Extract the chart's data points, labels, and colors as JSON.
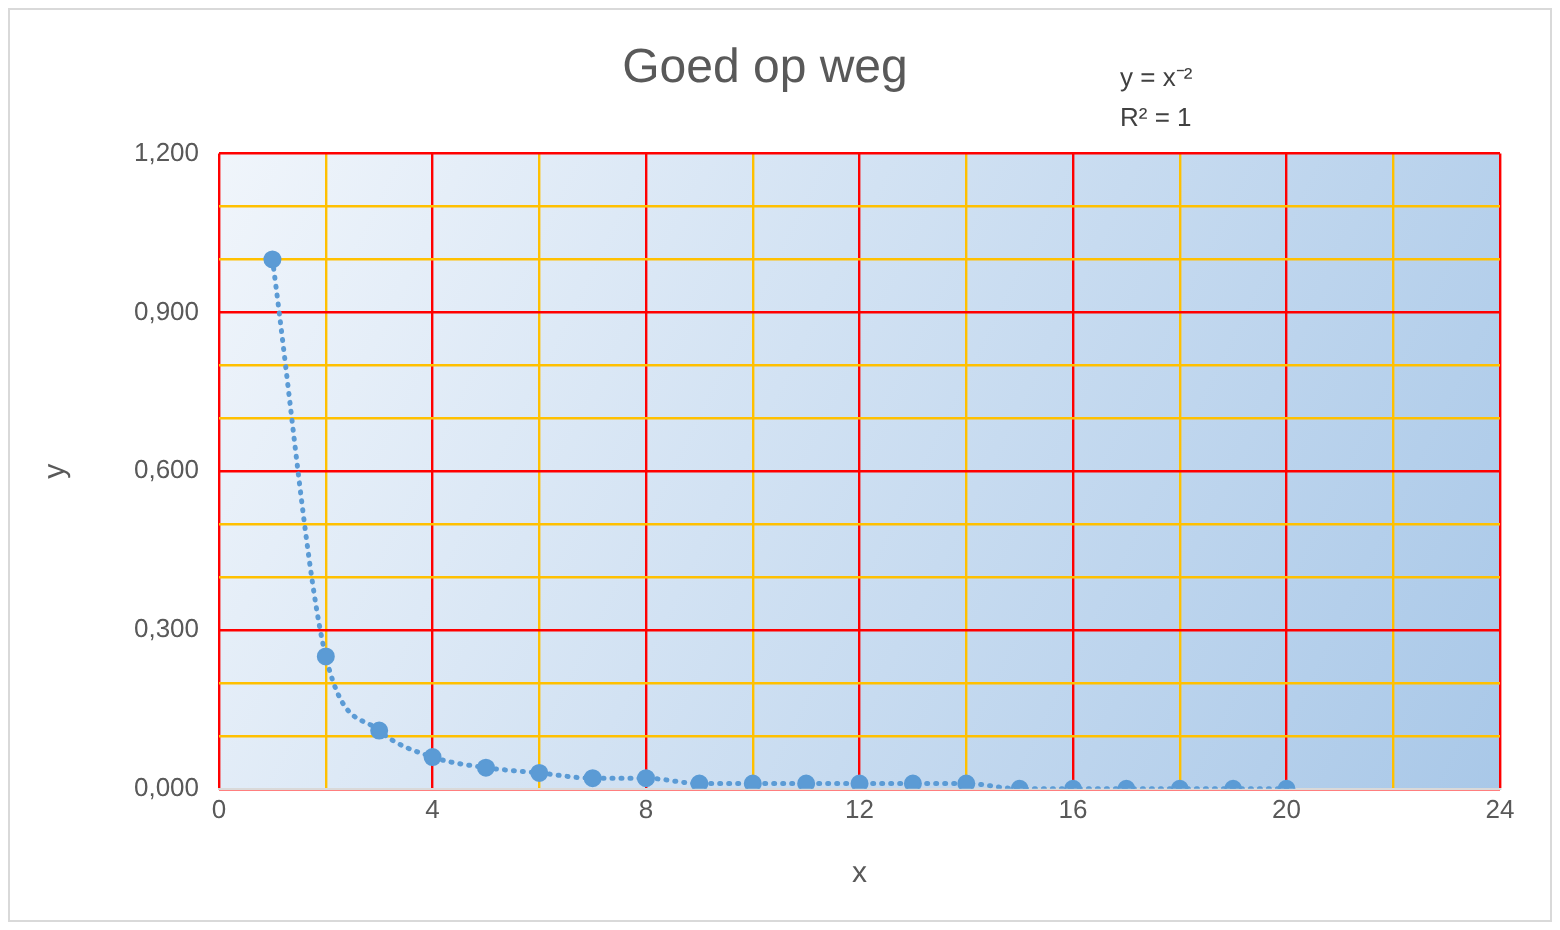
{
  "chart_data": {
    "type": "scatter",
    "title": "Goed op weg",
    "xlabel": "x",
    "ylabel": "y",
    "annotations": [
      "y = x⁻²",
      "R² = 1"
    ],
    "xlim": [
      0,
      24
    ],
    "xticks": [
      0,
      {
        "value": 2,
        "label": null
      },
      4,
      {
        "value": 6,
        "label": null
      },
      8,
      {
        "value": 10,
        "label": null
      },
      12,
      {
        "value": 14,
        "label": null
      },
      16,
      {
        "value": 18,
        "label": null
      },
      20,
      {
        "value": 22,
        "label": null
      },
      24
    ],
    "ylim": [
      0,
      1.2
    ],
    "yticks": [
      {
        "value": 0,
        "label": "0,000"
      },
      {
        "value": 0.1,
        "label": null
      },
      {
        "value": 0.2,
        "label": null
      },
      {
        "value": 0.3,
        "label": "0,300"
      },
      {
        "value": 0.4,
        "label": null
      },
      {
        "value": 0.5,
        "label": null
      },
      {
        "value": 0.6,
        "label": "0,600"
      },
      {
        "value": 0.7,
        "label": null
      },
      {
        "value": 0.8,
        "label": null
      },
      {
        "value": 0.9,
        "label": "0,900"
      },
      {
        "value": 1.0,
        "label": null
      },
      {
        "value": 1.1,
        "label": null
      },
      {
        "value": 1.2,
        "label": "1,200"
      }
    ],
    "grid": true,
    "legend": false,
    "x": [
      1,
      2,
      3,
      4,
      5,
      6,
      7,
      8,
      9,
      10,
      11,
      12,
      13,
      14,
      15,
      16,
      17,
      18,
      19,
      20
    ],
    "series": [
      {
        "type": "line",
        "color": "#5b9bd5",
        "line_style": "dotted",
        "marker": "none",
        "values": [
          1,
          0.25,
          0.11,
          0.06,
          0.04,
          0.03,
          0.02,
          0.02,
          0.01,
          0.01,
          0.01,
          0.01,
          0.01,
          0.01,
          0,
          0,
          0,
          0,
          0,
          0
        ]
      },
      {
        "color": "#5b9bd5",
        "marker": "circle",
        "values": [
          1,
          0.25,
          0.11,
          0.06,
          0.04,
          0.03,
          0.02,
          0.02,
          0.01,
          0.01,
          0.01,
          0.01,
          0.01,
          0.01,
          0,
          0,
          0,
          0,
          0,
          0
        ]
      }
    ]
  }
}
